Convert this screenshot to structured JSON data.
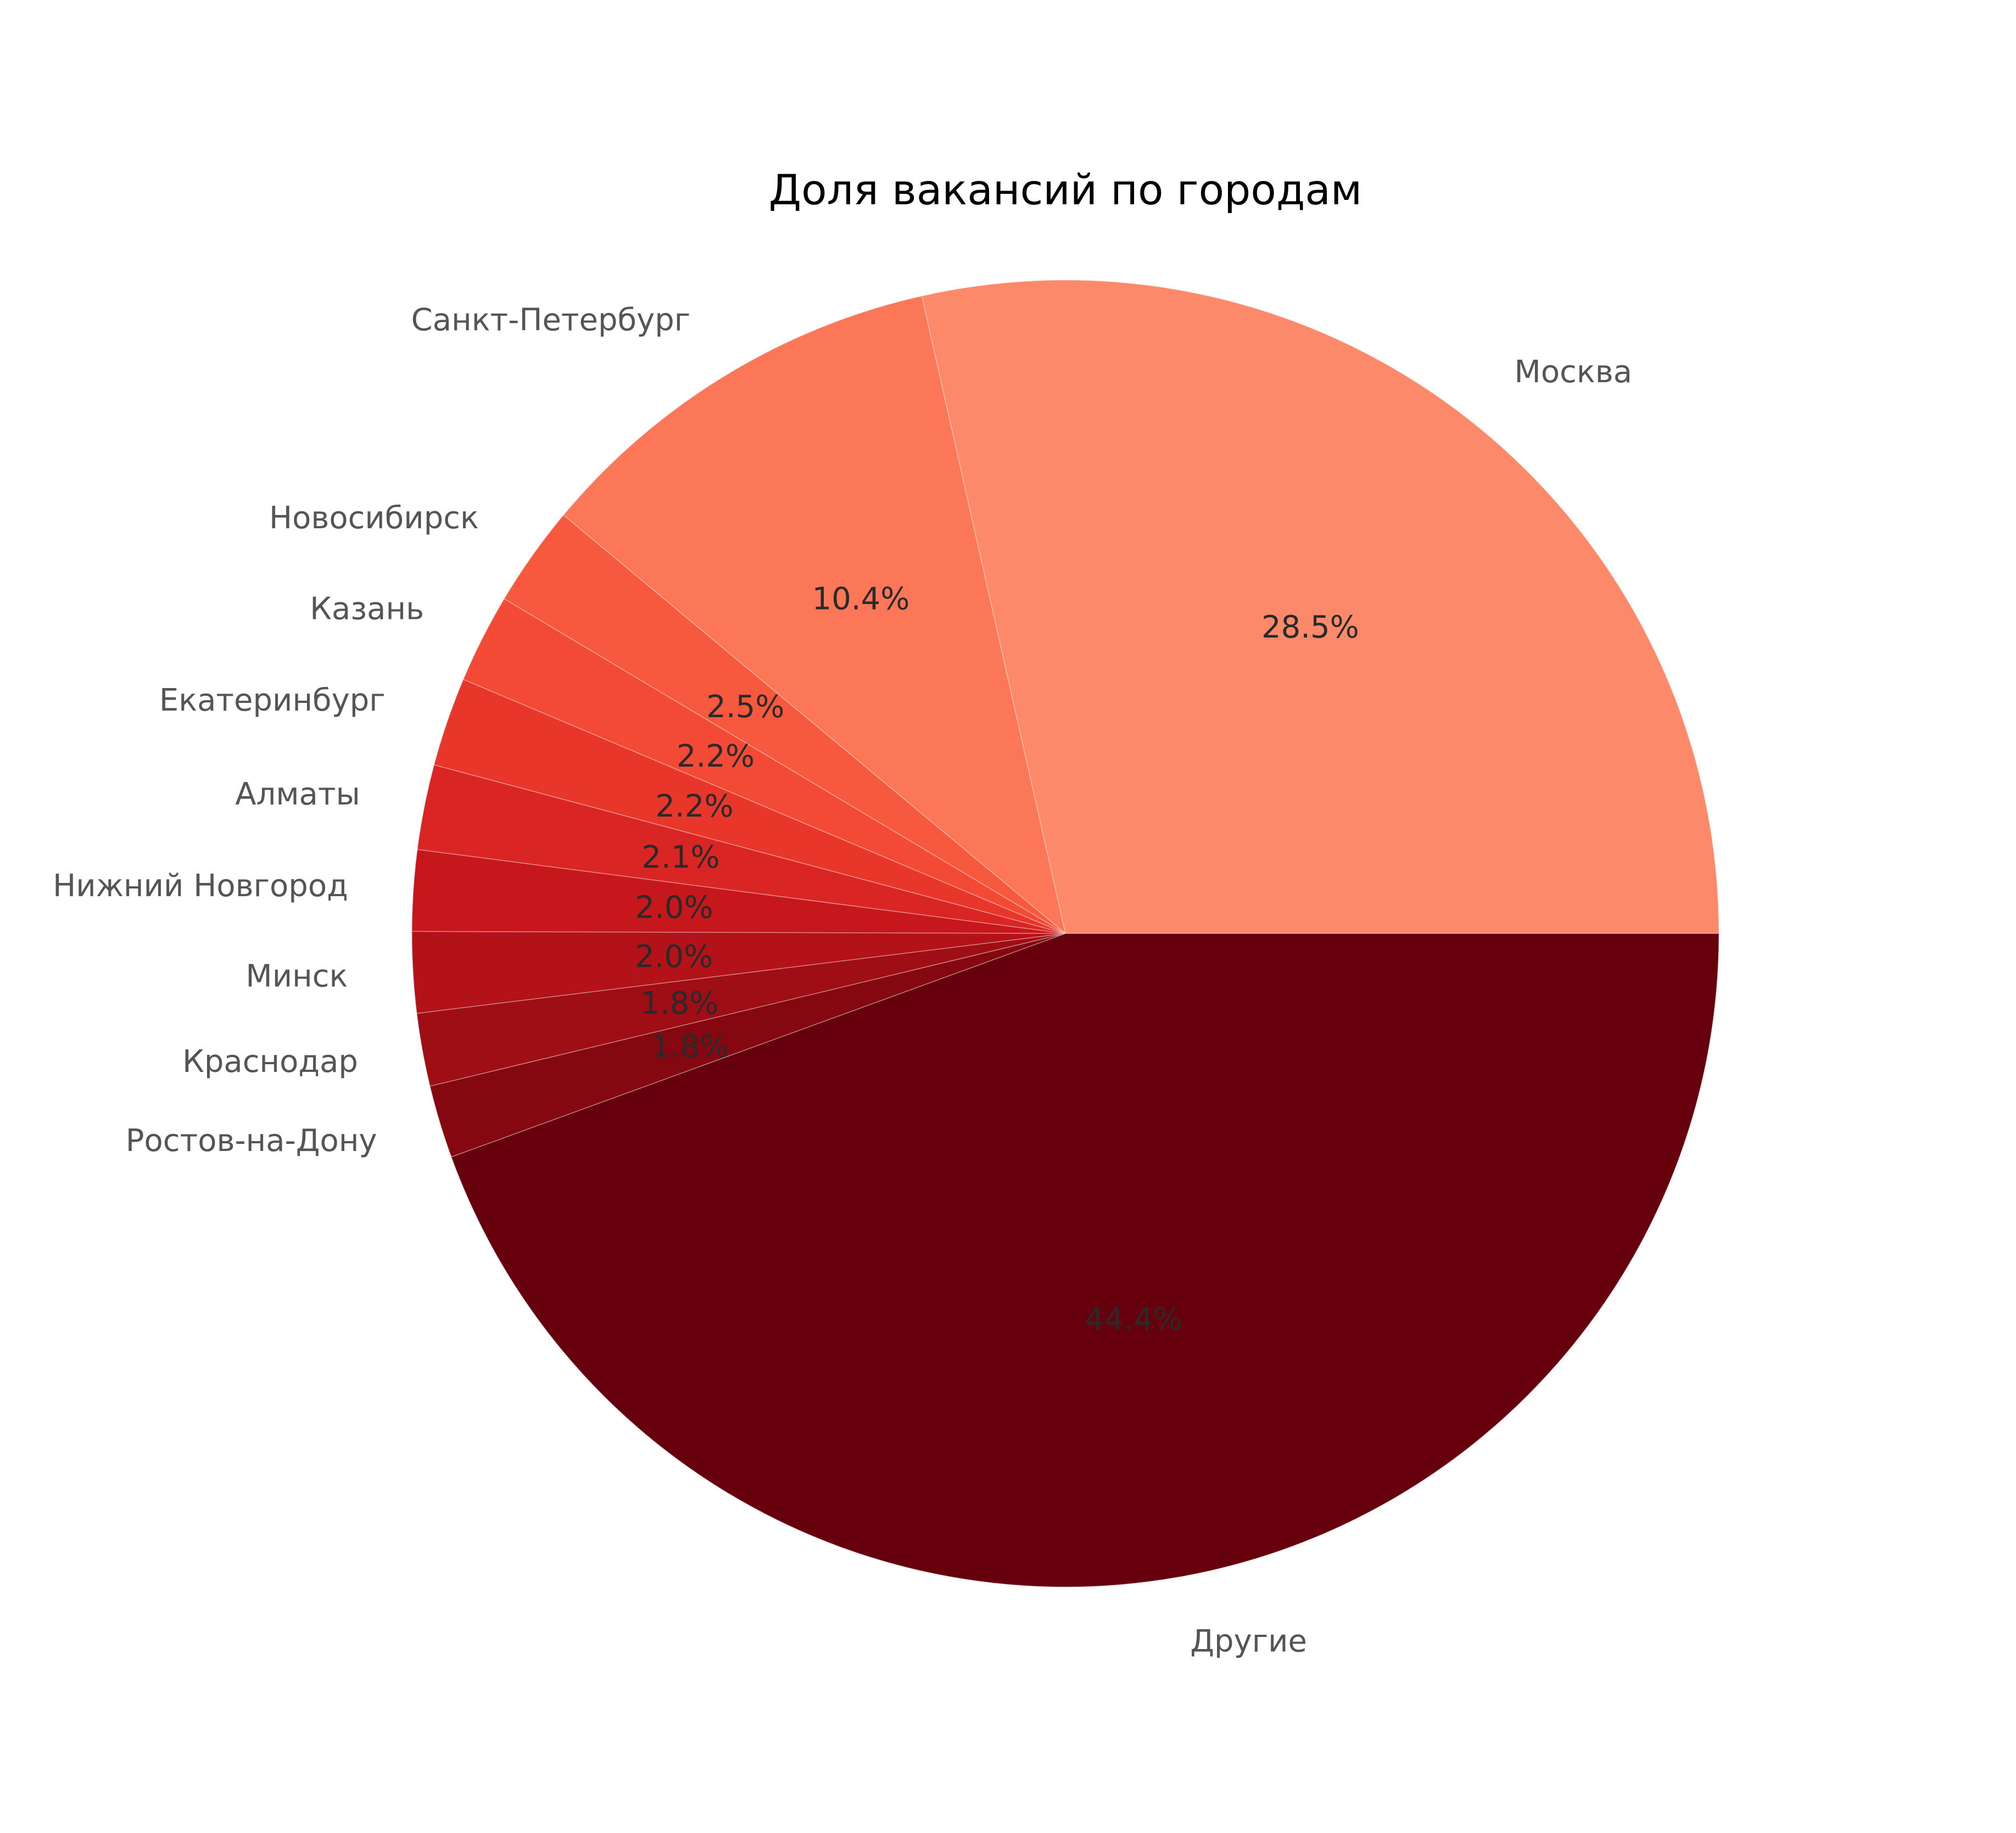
{
  "chart_data": {
    "type": "pie",
    "title": "Доля вакансий по городам",
    "start_angle_deg": 0,
    "direction": "counterclockwise",
    "slices": [
      {
        "label": "Москва",
        "value": 28.5,
        "pct_label": "28.5%",
        "color": "#fc8a6a"
      },
      {
        "label": "Санкт-Петербург",
        "value": 10.4,
        "pct_label": "10.4%",
        "color": "#fb7757"
      },
      {
        "label": "Новосибирск",
        "value": 2.5,
        "pct_label": "2.5%",
        "color": "#f7593f"
      },
      {
        "label": "Казань",
        "value": 2.2,
        "pct_label": "2.2%",
        "color": "#f24a35"
      },
      {
        "label": "Екатеринбург",
        "value": 2.2,
        "pct_label": "2.2%",
        "color": "#e8362b"
      },
      {
        "label": "Алматы",
        "value": 2.1,
        "pct_label": "2.1%",
        "color": "#d92523"
      },
      {
        "label": "Нижний Новгород",
        "value": 2.0,
        "pct_label": "2.0%",
        "color": "#c6171c"
      },
      {
        "label": "Минск",
        "value": 2.0,
        "pct_label": "2.0%",
        "color": "#b21218"
      },
      {
        "label": "Краснодар",
        "value": 1.8,
        "pct_label": "1.8%",
        "color": "#9e0e14"
      },
      {
        "label": "Ростов-на-Дону",
        "value": 1.8,
        "pct_label": "1.8%",
        "color": "#850811"
      },
      {
        "label": "Другие",
        "value": 44.4,
        "pct_label": "44.4%",
        "color": "#67000d"
      }
    ]
  }
}
